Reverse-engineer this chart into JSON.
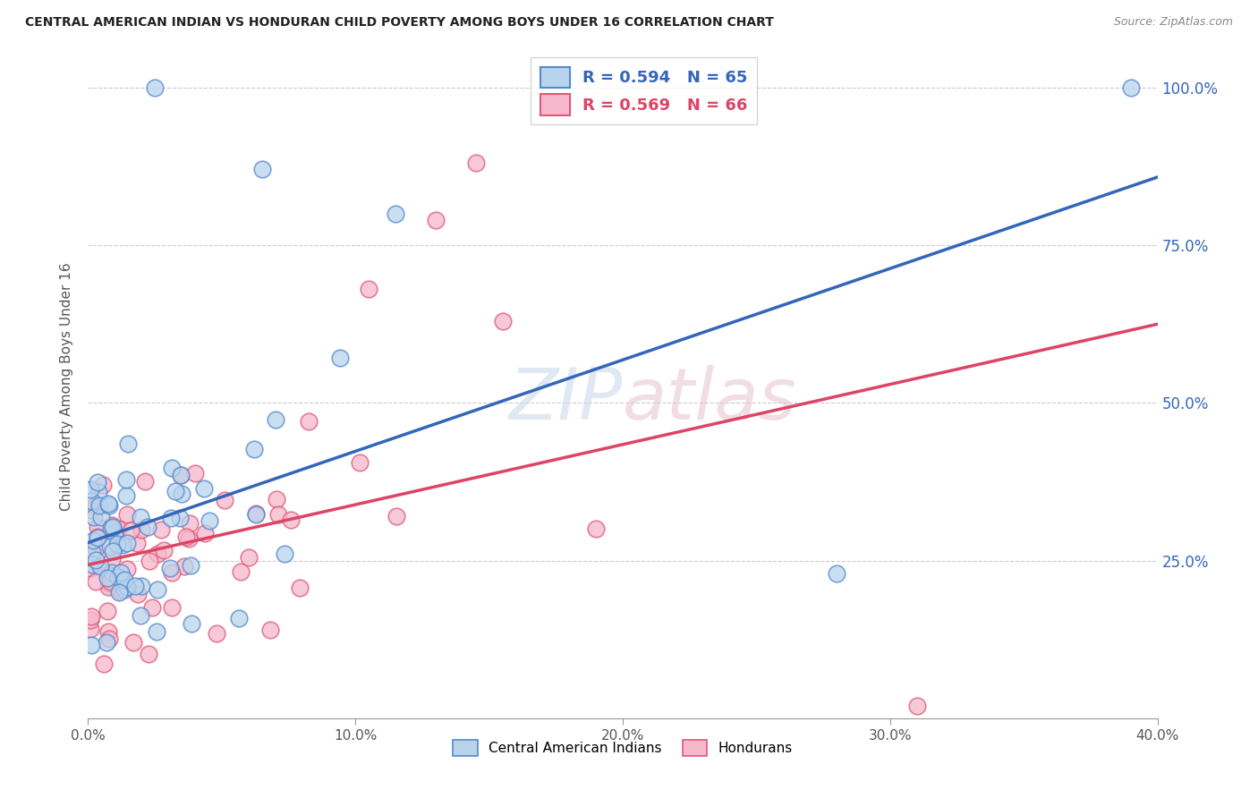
{
  "title": "CENTRAL AMERICAN INDIAN VS HONDURAN CHILD POVERTY AMONG BOYS UNDER 16 CORRELATION CHART",
  "source": "Source: ZipAtlas.com",
  "ylabel": "Child Poverty Among Boys Under 16",
  "xlim": [
    0.0,
    0.4
  ],
  "ylim": [
    0.0,
    1.05
  ],
  "xticks": [
    0.0,
    0.1,
    0.2,
    0.3,
    0.4
  ],
  "xtick_labels": [
    "0.0%",
    "10.0%",
    "20.0%",
    "30.0%",
    "40.0%"
  ],
  "yticks": [
    0.25,
    0.5,
    0.75,
    1.0
  ],
  "ytick_labels": [
    "25.0%",
    "50.0%",
    "75.0%",
    "100.0%"
  ],
  "series1_label": "Central American Indians",
  "series2_label": "Hondurans",
  "series1_color": "#b8d4ed",
  "series2_color": "#f5b8cc",
  "series1_edge": "#5588cc",
  "series2_edge": "#e05878",
  "trend1_color": "#3366bb",
  "trend2_color": "#dd4466",
  "watermark": "ZIPAtlas",
  "R1": 0.594,
  "N1": 65,
  "R2": 0.569,
  "N2": 66,
  "seed1": 77,
  "seed2": 88
}
